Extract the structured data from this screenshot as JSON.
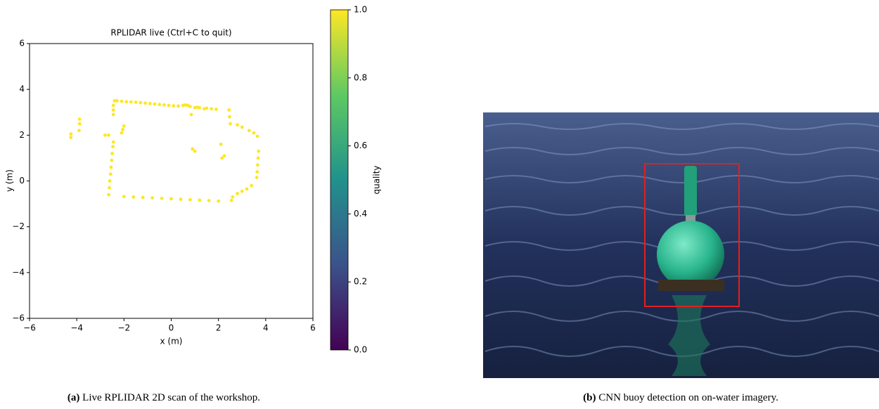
{
  "chart_data": {
    "type": "scatter",
    "title": "RPLIDAR live (Ctrl+C to quit)",
    "x_label": "x (m)",
    "y_label": "y (m)",
    "color": "#fde725",
    "x": [
      -2.4,
      -2.3,
      -2.1,
      -1.9,
      -1.7,
      -1.5,
      -1.3,
      -1.1,
      -0.9,
      -0.7,
      -0.5,
      -0.3,
      -0.1,
      0.1,
      0.3,
      0.5,
      0.6,
      0.7,
      0.8,
      1.0,
      1.1,
      1.2,
      1.4,
      1.5,
      1.7,
      1.9,
      -2.45,
      -2.45,
      -2.45,
      -2.8,
      -2.65,
      -2.1,
      -2.05,
      -2.0,
      -2.65,
      -2.62,
      -2.6,
      -2.57,
      -2.55,
      -2.52,
      -2.5,
      -2.47,
      -2.45,
      -4.25,
      -4.25,
      -3.9,
      -3.88,
      -3.88,
      -2.0,
      -1.6,
      -1.2,
      -0.8,
      -0.4,
      0,
      0.4,
      0.8,
      1.2,
      1.6,
      2.0,
      2.45,
      2.47,
      2.5,
      2.8,
      3.0,
      3.3,
      3.5,
      3.65,
      3.7,
      3.68,
      3.66,
      3.64,
      3.62,
      3.4,
      3.2,
      3.0,
      2.8,
      2.6,
      2.55,
      0.9,
      1.0,
      0.85,
      2.15,
      2.25,
      2.1
    ],
    "values": [
      3.5,
      3.5,
      3.48,
      3.46,
      3.45,
      3.44,
      3.42,
      3.4,
      3.38,
      3.36,
      3.34,
      3.32,
      3.3,
      3.28,
      3.27,
      3.3,
      3.32,
      3.3,
      3.25,
      3.2,
      3.22,
      3.2,
      3.15,
      3.18,
      3.15,
      3.13,
      3.3,
      3.1,
      2.9,
      2.0,
      2.0,
      2.1,
      2.25,
      2.4,
      -0.6,
      -0.3,
      0,
      0.3,
      0.6,
      0.9,
      1.2,
      1.5,
      1.7,
      1.9,
      2.05,
      2.2,
      2.5,
      2.7,
      -0.68,
      -0.7,
      -0.72,
      -0.74,
      -0.76,
      -0.78,
      -0.8,
      -0.82,
      -0.84,
      -0.86,
      -0.88,
      3.1,
      2.8,
      2.5,
      2.45,
      2.35,
      2.2,
      2.1,
      1.95,
      1.3,
      1.0,
      0.7,
      0.4,
      0.15,
      -0.2,
      -0.35,
      -0.45,
      -0.55,
      -0.7,
      -0.85,
      1.4,
      1.3,
      2.9,
      1.0,
      1.1,
      1.6
    ],
    "xlim": [
      -6,
      6
    ],
    "ylim": [
      -6,
      6
    ],
    "xticks": [
      {
        "value": -6,
        "label": "−6"
      },
      {
        "value": -4,
        "label": "−4"
      },
      {
        "value": -2,
        "label": "−2"
      },
      0,
      2,
      4,
      6
    ],
    "yticks": [
      {
        "value": -6,
        "label": "−6"
      },
      {
        "value": -4,
        "label": "−4"
      },
      {
        "value": -2,
        "label": "−2"
      },
      0,
      2,
      4,
      6
    ],
    "colorbar": {
      "label": "quality",
      "lim": [
        0,
        1
      ],
      "ticks": [
        {
          "value": 0,
          "label": "0.0"
        },
        {
          "value": 0.2,
          "label": "0.2"
        },
        {
          "value": 0.4,
          "label": "0.4"
        },
        {
          "value": 0.6,
          "label": "0.6"
        },
        {
          "value": 0.8,
          "label": "0.8"
        },
        {
          "value": 1,
          "label": "1.0"
        }
      ]
    }
  },
  "captions": [
    {
      "label": "(a)",
      "text": "Live RPLIDAR 2D scan of the workshop."
    },
    {
      "label": "(b)",
      "text": "CNN buoy detection on on-water imagery."
    }
  ]
}
